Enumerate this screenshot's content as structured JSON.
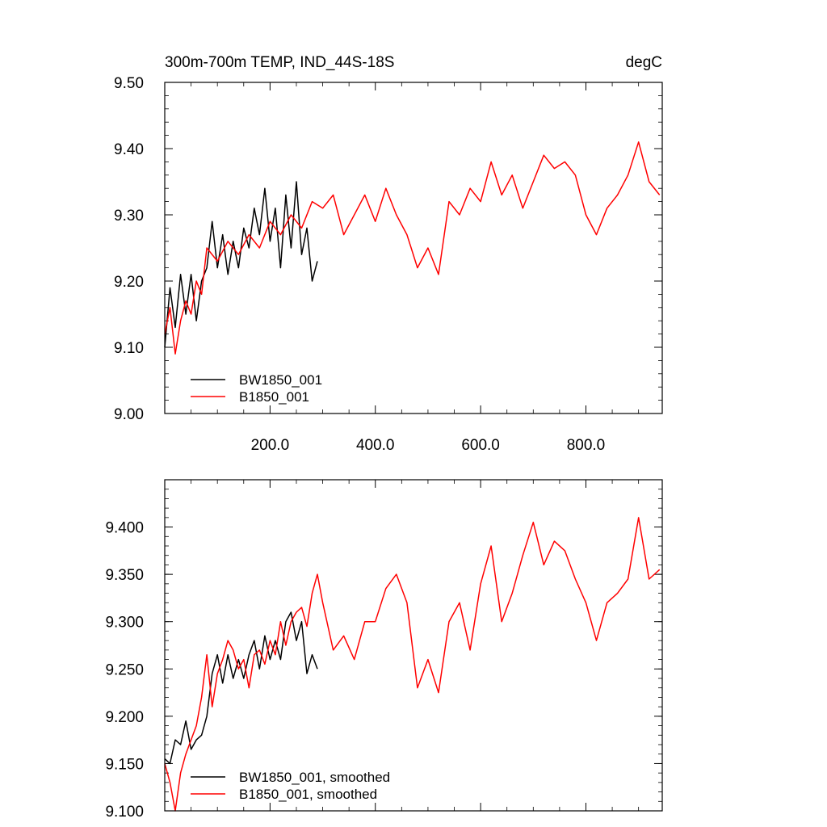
{
  "chart_data": [
    {
      "type": "line",
      "title": "300m-700m TEMP, IND_44S-18S",
      "units": "degC",
      "xlabel": "",
      "ylabel": "",
      "xlim": [
        0,
        945
      ],
      "ylim": [
        9.0,
        9.5
      ],
      "xticks": [
        200,
        400,
        600,
        800
      ],
      "xtick_labels": [
        "200.0",
        "400.0",
        "600.0",
        "800.0"
      ],
      "yticks": [
        9.0,
        9.1,
        9.2,
        9.3,
        9.4,
        9.5
      ],
      "ytick_labels": [
        "9.00",
        "9.10",
        "9.20",
        "9.30",
        "9.40",
        "9.50"
      ],
      "legend_position": "bottom-left",
      "series": [
        {
          "name": "BW1850_001",
          "color": "#000000",
          "x": [
            0,
            10,
            20,
            30,
            40,
            50,
            60,
            70,
            80,
            90,
            100,
            110,
            120,
            130,
            140,
            150,
            160,
            170,
            180,
            190,
            200,
            210,
            220,
            230,
            240,
            250,
            260,
            270,
            280,
            290
          ],
          "values": [
            9.1,
            9.19,
            9.13,
            9.21,
            9.15,
            9.21,
            9.14,
            9.2,
            9.22,
            9.29,
            9.22,
            9.27,
            9.21,
            9.26,
            9.22,
            9.28,
            9.25,
            9.31,
            9.27,
            9.34,
            9.26,
            9.31,
            9.22,
            9.33,
            9.25,
            9.35,
            9.24,
            9.28,
            9.2,
            9.23
          ]
        },
        {
          "name": "B1850_001",
          "color": "#ff0000",
          "x": [
            0,
            10,
            20,
            30,
            40,
            50,
            60,
            70,
            80,
            100,
            120,
            140,
            160,
            180,
            200,
            220,
            240,
            260,
            280,
            300,
            320,
            340,
            360,
            380,
            400,
            420,
            440,
            460,
            480,
            500,
            520,
            540,
            560,
            580,
            600,
            620,
            640,
            660,
            680,
            700,
            720,
            740,
            760,
            780,
            800,
            820,
            840,
            860,
            880,
            900,
            920,
            940
          ],
          "values": [
            9.12,
            9.16,
            9.09,
            9.14,
            9.17,
            9.15,
            9.2,
            9.18,
            9.25,
            9.23,
            9.26,
            9.24,
            9.27,
            9.25,
            9.29,
            9.27,
            9.3,
            9.28,
            9.32,
            9.31,
            9.33,
            9.27,
            9.3,
            9.33,
            9.29,
            9.34,
            9.3,
            9.27,
            9.22,
            9.25,
            9.21,
            9.32,
            9.3,
            9.34,
            9.32,
            9.38,
            9.33,
            9.36,
            9.31,
            9.35,
            9.39,
            9.37,
            9.38,
            9.36,
            9.3,
            9.27,
            9.31,
            9.33,
            9.36,
            9.41,
            9.35,
            9.33
          ]
        }
      ]
    },
    {
      "type": "line",
      "title": "",
      "xlabel": "",
      "ylabel": "",
      "xlim": [
        0,
        945
      ],
      "ylim": [
        9.1,
        9.45
      ],
      "xticks": [
        200,
        400,
        600,
        800
      ],
      "yticks": [
        9.1,
        9.15,
        9.2,
        9.25,
        9.3,
        9.35,
        9.4
      ],
      "ytick_labels": [
        "9.100",
        "9.150",
        "9.200",
        "9.250",
        "9.300",
        "9.350",
        "9.400"
      ],
      "legend_position": "bottom-left",
      "series": [
        {
          "name": "BW1850_001, smoothed",
          "color": "#000000",
          "x": [
            0,
            10,
            20,
            30,
            40,
            50,
            60,
            70,
            80,
            90,
            100,
            110,
            120,
            130,
            140,
            150,
            160,
            170,
            180,
            190,
            200,
            210,
            220,
            230,
            240,
            250,
            260,
            270,
            280,
            290
          ],
          "values": [
            9.155,
            9.15,
            9.175,
            9.17,
            9.195,
            9.165,
            9.175,
            9.18,
            9.2,
            9.245,
            9.265,
            9.235,
            9.265,
            9.24,
            9.26,
            9.24,
            9.265,
            9.28,
            9.25,
            9.285,
            9.26,
            9.28,
            9.26,
            9.3,
            9.31,
            9.28,
            9.3,
            9.245,
            9.265,
            9.25
          ]
        },
        {
          "name": "B1850_001, smoothed",
          "color": "#ff0000",
          "x": [
            0,
            10,
            20,
            30,
            40,
            50,
            60,
            70,
            80,
            90,
            100,
            110,
            120,
            130,
            140,
            150,
            160,
            170,
            180,
            190,
            200,
            210,
            220,
            230,
            240,
            250,
            260,
            270,
            280,
            290,
            300,
            320,
            340,
            360,
            380,
            400,
            420,
            440,
            460,
            480,
            500,
            520,
            540,
            560,
            580,
            600,
            620,
            640,
            660,
            680,
            700,
            720,
            740,
            760,
            780,
            800,
            820,
            840,
            860,
            880,
            900,
            920,
            940
          ],
          "values": [
            9.15,
            9.13,
            9.1,
            9.14,
            9.16,
            9.175,
            9.19,
            9.22,
            9.265,
            9.21,
            9.245,
            9.26,
            9.28,
            9.27,
            9.25,
            9.26,
            9.23,
            9.265,
            9.27,
            9.255,
            9.28,
            9.265,
            9.3,
            9.275,
            9.3,
            9.31,
            9.315,
            9.295,
            9.33,
            9.35,
            9.32,
            9.27,
            9.285,
            9.26,
            9.3,
            9.3,
            9.335,
            9.35,
            9.32,
            9.23,
            9.26,
            9.225,
            9.3,
            9.32,
            9.27,
            9.34,
            9.38,
            9.3,
            9.33,
            9.37,
            9.405,
            9.36,
            9.385,
            9.375,
            9.345,
            9.32,
            9.28,
            9.32,
            9.33,
            9.345,
            9.41,
            9.345,
            9.355
          ]
        }
      ]
    }
  ]
}
